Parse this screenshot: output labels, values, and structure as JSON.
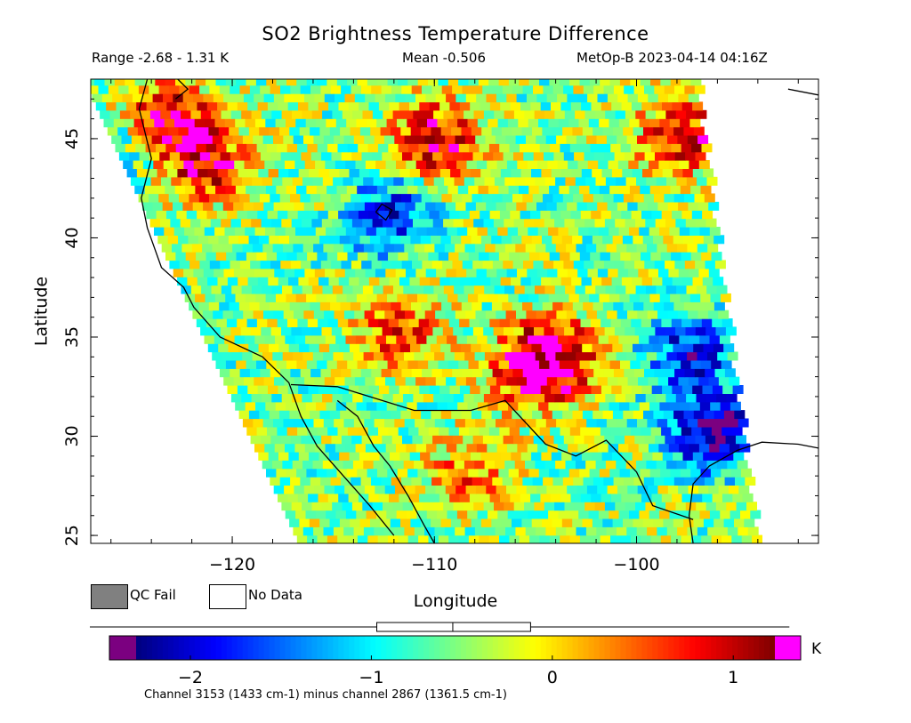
{
  "chart_data": {
    "type": "heatmap",
    "title": "SO2 Brightness Temperature Difference",
    "subtitle": {
      "range": "Range -2.68 - 1.31 K",
      "mean": "Mean -0.506",
      "satellite_time": "MetOp-B 2023-04-14 04:16Z"
    },
    "xlabel": "Longitude",
    "ylabel": "Latitude",
    "xlim": [
      -127,
      -91
    ],
    "ylim": [
      24.6,
      48
    ],
    "xticks": [
      -120,
      -110,
      -100
    ],
    "xtick_labels": [
      "−120",
      "−110",
      "−100"
    ],
    "yticks": [
      25,
      30,
      35,
      40,
      45
    ],
    "ytick_labels": [
      "25",
      "30",
      "35",
      "40",
      "45"
    ],
    "swath_edges": {
      "west_top_lon": -127,
      "west_top_lat": 47.0,
      "west_bottom_lon": -116.8,
      "west_bottom_lat": 24.6,
      "east_top_lon": -97.2,
      "east_top_lat": 48.0,
      "east_bottom_lon": -94.2,
      "east_bottom_lat": 24.6
    },
    "hotspots": [
      {
        "lon": -121.5,
        "lat": 43.5,
        "value": 0.9
      },
      {
        "lon": -123.5,
        "lat": 46.0,
        "value": 1.0
      },
      {
        "lon": -110.2,
        "lat": 44.7,
        "value": 1.1
      },
      {
        "lon": -104.2,
        "lat": 34.0,
        "value": 0.9
      },
      {
        "lon": -105.5,
        "lat": 33.0,
        "value": 0.8
      },
      {
        "lon": -108.5,
        "lat": 28.0,
        "value": 0.4
      },
      {
        "lon": -112.0,
        "lat": 35.0,
        "value": 0.7
      },
      {
        "lon": -98.0,
        "lat": 45.0,
        "value": 0.9
      },
      {
        "lon": -112.5,
        "lat": 41.0,
        "value": -1.8
      },
      {
        "lon": -96.5,
        "lat": 30.0,
        "value": -2.4
      },
      {
        "lon": -97.5,
        "lat": 34.0,
        "value": -1.9
      },
      {
        "lon": -126.0,
        "lat": 44.0,
        "value": -1.2
      }
    ],
    "colorbar": {
      "min": -2.3,
      "max": 1.23,
      "ticks": [
        -2,
        -1,
        0,
        1
      ],
      "tick_labels": [
        "−2",
        "−1",
        "0",
        "1"
      ],
      "unit": "K",
      "under_color": "#7b0080",
      "over_color": "#ff00ff",
      "box_plot": {
        "min": -2.68,
        "q1": -0.97,
        "median": -0.55,
        "q3": -0.12,
        "max": 1.31
      },
      "colors": [
        "#00007f",
        "#0000ff",
        "#007fff",
        "#00ffff",
        "#7fff7f",
        "#ffff00",
        "#ff7f00",
        "#ff0000",
        "#7f0000"
      ]
    },
    "legend": [
      {
        "label": "QC Fail",
        "color": "#808080"
      },
      {
        "label": "No Data",
        "color": "#ffffff"
      }
    ],
    "footnote": "Channel 3153 (1433 cm-1) minus channel 2867 (1361.5 cm-1)"
  }
}
